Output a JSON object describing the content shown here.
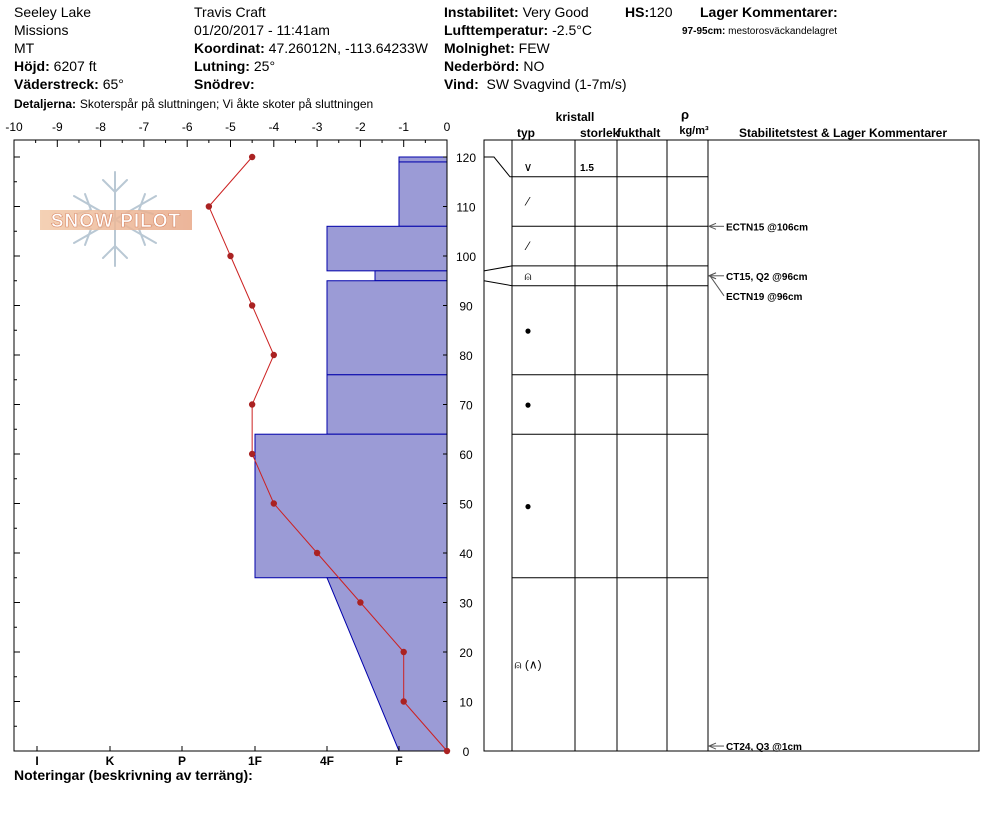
{
  "header": {
    "location": "Seeley Lake",
    "region": "Missions",
    "state": "MT",
    "elevation_label": "Höjd:",
    "elevation_value": "6207 ft",
    "aspect_label": "Väderstreck:",
    "aspect_value": "65°",
    "observer": "Travis  Craft",
    "datetime": "01/20/2017 - 11:41am",
    "coord_label": "Koordinat:",
    "coord_value": "47.26012N, -113.64233W",
    "slope_label": "Lutning:",
    "slope_value": "25°",
    "snowdrift_label": "Snödrev:",
    "instability_label": "Instabilitet:",
    "instability_value": "Very Good",
    "hs_label": "HS:",
    "hs_value": "120",
    "airtemp_label": "Lufttemperatur:",
    "airtemp_value": "-2.5°C",
    "clouds_label": "Molnighet:",
    "clouds_value": "FEW",
    "precip_label": "Nederbörd:",
    "precip_value": "NO",
    "wind_label": "Vind:",
    "wind_value": "SW  Svagvind (1-7m/s)",
    "layer_comments_label": "Lager Kommentarer:",
    "layer_comment_depth": "97-95cm:",
    "layer_comment_text": "mestorosväckandelagret",
    "details_label": "Detaljerna:",
    "details_value": "Skoterspår på sluttningen;  Vi åkte skoter på sluttningen"
  },
  "footer": {
    "notes_label": "Noteringar (beskrivning av terräng):"
  },
  "logo": {
    "text": "SNOW PILOT"
  },
  "table_headers": {
    "crystal": "kristall",
    "type": "typ",
    "size": "storlek",
    "moisture": "fukthalt",
    "rho": "ρ",
    "density_unit": "kg/m³",
    "stability": "Stabilitetstest & Lager Kommentarer"
  },
  "chart_data": {
    "type": "line",
    "temp_axis": {
      "ticks": [
        -10,
        -9,
        -8,
        -7,
        -6,
        -5,
        -4,
        -3,
        -2,
        -1,
        0
      ],
      "range": [
        -10,
        0
      ]
    },
    "depth_axis": {
      "ticks": [
        0,
        10,
        20,
        30,
        40,
        50,
        60,
        70,
        80,
        90,
        100,
        110,
        120
      ],
      "range": [
        0,
        123
      ]
    },
    "hardness_labels": [
      "I",
      "K",
      "P",
      "1F",
      "4F",
      "F"
    ],
    "temperature_profile": [
      {
        "depth": 120,
        "temp": -4.5
      },
      {
        "depth": 110,
        "temp": -5.5
      },
      {
        "depth": 100,
        "temp": -5.0
      },
      {
        "depth": 90,
        "temp": -4.5
      },
      {
        "depth": 80,
        "temp": -4.0
      },
      {
        "depth": 70,
        "temp": -4.5
      },
      {
        "depth": 60,
        "temp": -4.5
      },
      {
        "depth": 50,
        "temp": -4.0
      },
      {
        "depth": 40,
        "temp": -3.0
      },
      {
        "depth": 30,
        "temp": -2.0
      },
      {
        "depth": 20,
        "temp": -1.0
      },
      {
        "depth": 10,
        "temp": -1.0
      },
      {
        "depth": 0,
        "temp": 0.0
      }
    ],
    "hardness_profile": [
      {
        "top": 120,
        "bottom": 119,
        "hardness": "F"
      },
      {
        "top": 119,
        "bottom": 106,
        "hardness": "F"
      },
      {
        "top": 106,
        "bottom": 97,
        "hardness": "4F"
      },
      {
        "top": 97,
        "bottom": 95,
        "hardness": "F+"
      },
      {
        "top": 95,
        "bottom": 76,
        "hardness": "4F"
      },
      {
        "top": 76,
        "bottom": 64,
        "hardness": "4F"
      },
      {
        "top": 64,
        "bottom": 35,
        "hardness": "1F"
      },
      {
        "top": 35,
        "bottom": 0,
        "hardness": "4F to F"
      }
    ],
    "layers": [
      {
        "top": 120,
        "bottom": 116,
        "type": "∨",
        "size": "1.5"
      },
      {
        "top": 116,
        "bottom": 106,
        "type": "⁄",
        "size": ""
      },
      {
        "top": 106,
        "bottom": 98,
        "type": "⁄",
        "size": ""
      },
      {
        "top": 98,
        "bottom": 94,
        "type": "⍝",
        "size": ""
      },
      {
        "top": 94,
        "bottom": 76,
        "type": "●",
        "size": ""
      },
      {
        "top": 76,
        "bottom": 64,
        "type": "●",
        "size": ""
      },
      {
        "top": 64,
        "bottom": 35,
        "type": "●",
        "size": ""
      },
      {
        "top": 35,
        "bottom": 0,
        "type": "⍝ (∧)",
        "size": ""
      }
    ],
    "stability_tests": [
      {
        "depth": 106,
        "label": "ECTN15 @106cm"
      },
      {
        "depth": 96,
        "label": "CT15, Q2 @96cm"
      },
      {
        "depth": 96,
        "label": "ECTN19 @96cm",
        "offset": true
      },
      {
        "depth": 1,
        "label": "CT24, Q3 @1cm"
      }
    ]
  }
}
